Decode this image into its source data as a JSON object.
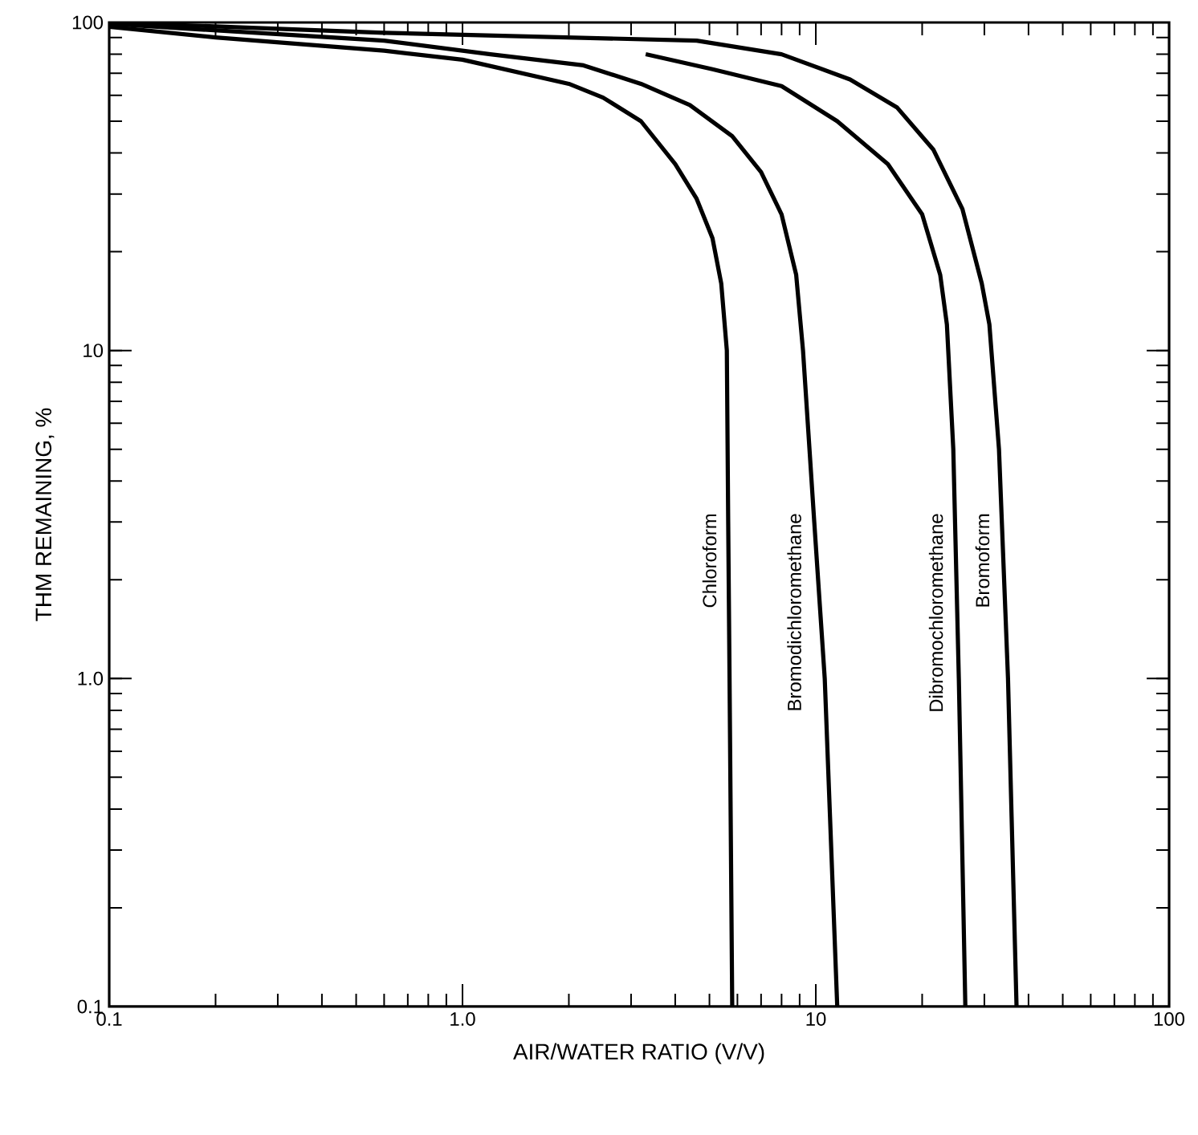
{
  "chart_data": {
    "type": "line",
    "xlabel": "AIR/WATER RATIO (V/V)",
    "ylabel": "THM REMAINING, %",
    "log": "xy",
    "xlim": [
      0.1,
      100
    ],
    "ylim": [
      0.1,
      100
    ],
    "xticks": [
      0.1,
      {
        "value": 1,
        "label": "1.0"
      },
      10,
      100
    ],
    "yticks": [
      0.1,
      {
        "value": 1,
        "label": "1.0"
      },
      10,
      100
    ],
    "series": [
      {
        "name": "Chloroform",
        "color": "#000000",
        "x": [
          0.1,
          0.2,
          0.6,
          1.0,
          2.0,
          2.5,
          3.2,
          4.0,
          4.6,
          5.1,
          5.4,
          5.6,
          5.65,
          5.7,
          5.8
        ],
        "values": [
          97,
          90,
          82,
          77,
          65,
          59,
          50,
          37,
          29,
          22,
          16,
          10,
          3,
          1,
          0.1
        ]
      },
      {
        "name": "Bromodichloromethane",
        "color": "#000000",
        "x": [
          0.1,
          0.6,
          1.2,
          2.2,
          3.2,
          4.4,
          5.8,
          7.0,
          8.0,
          8.8,
          9.2,
          9.9,
          10.6,
          11.5
        ],
        "values": [
          99,
          88,
          80,
          74,
          65,
          56,
          45,
          35,
          26,
          17,
          10,
          3,
          1,
          0.1
        ]
      },
      {
        "name": "Dibromochloromethane",
        "color": "#000000",
        "x": [
          3.3,
          5.1,
          8.0,
          11.5,
          16,
          20,
          22.5,
          23.5,
          24.5,
          25.4,
          26.5
        ],
        "values": [
          80,
          72,
          64,
          50,
          37,
          26,
          17,
          12,
          5,
          1,
          0.1
        ]
      },
      {
        "name": "Bromoform",
        "color": "#000000",
        "x": [
          0.1,
          0.6,
          4.6,
          8.0,
          12.5,
          17,
          21.5,
          26,
          29.5,
          31,
          33,
          35,
          37
        ],
        "values": [
          100,
          93,
          88,
          80,
          67,
          55,
          41,
          27,
          16,
          12,
          5,
          1,
          0.1
        ]
      }
    ]
  }
}
